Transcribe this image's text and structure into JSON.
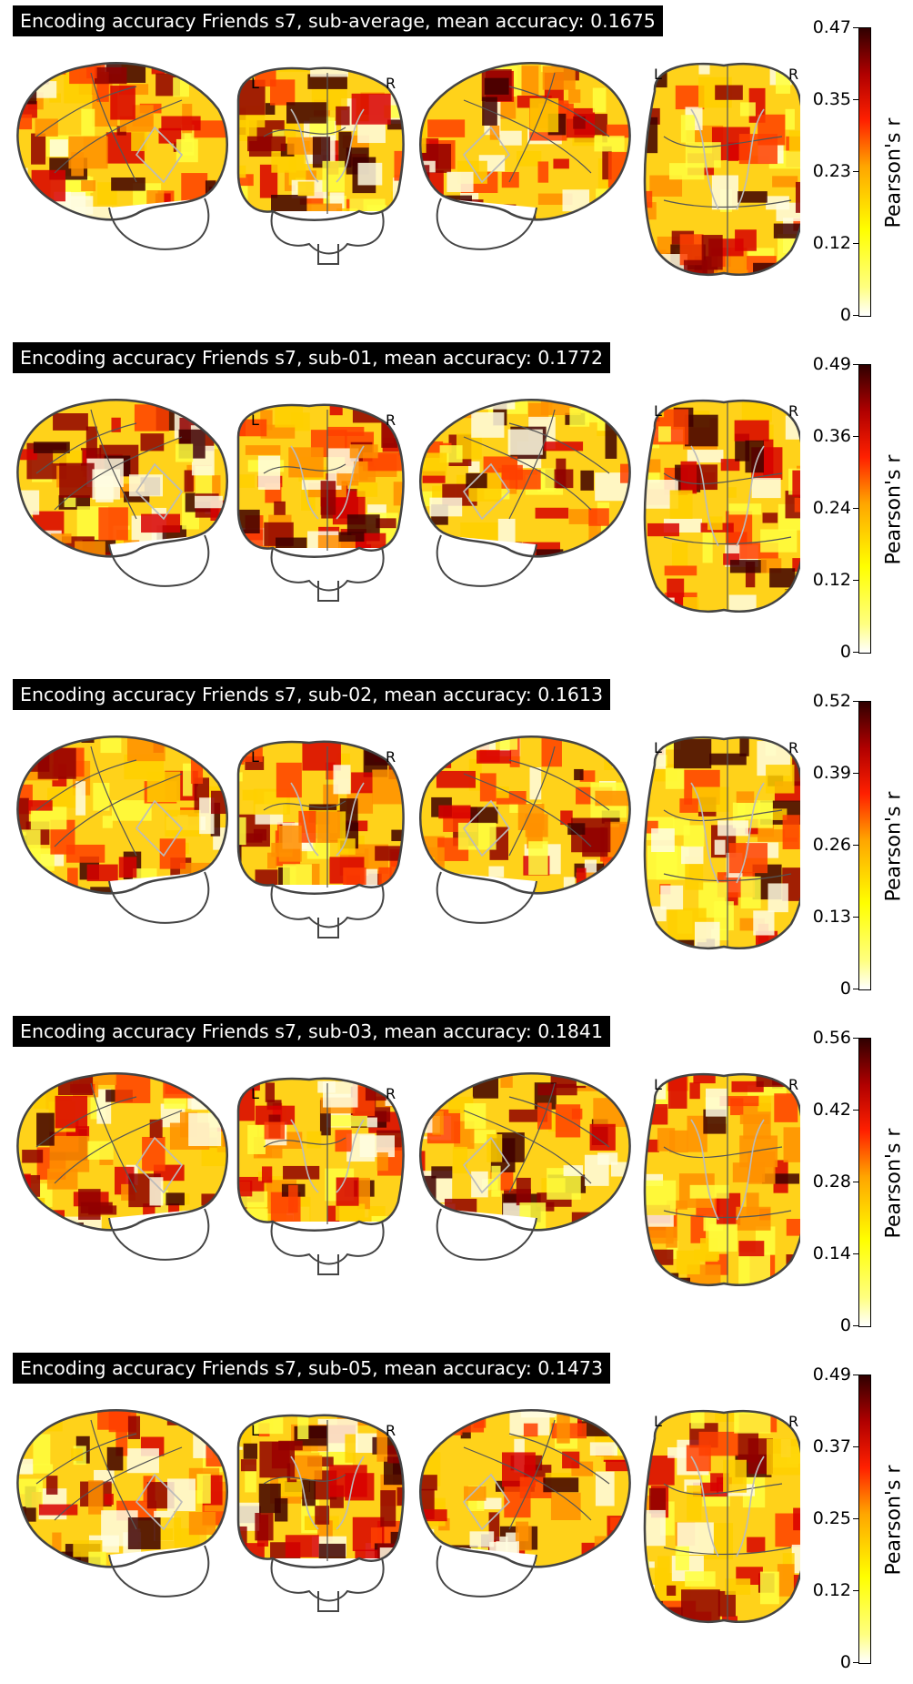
{
  "panels": [
    {
      "title": "Encoding accuracy Friends s7, sub-average, mean accuracy: 0.1675",
      "ticks": [
        "0.47",
        "0.35",
        "0.23",
        "0.12",
        "0"
      ]
    },
    {
      "title": "Encoding accuracy Friends s7, sub-01, mean accuracy: 0.1772",
      "ticks": [
        "0.49",
        "0.36",
        "0.24",
        "0.12",
        "0"
      ]
    },
    {
      "title": "Encoding accuracy Friends s7, sub-02, mean accuracy: 0.1613",
      "ticks": [
        "0.52",
        "0.39",
        "0.26",
        "0.13",
        "0"
      ]
    },
    {
      "title": "Encoding accuracy Friends s7, sub-03, mean accuracy: 0.1841",
      "ticks": [
        "0.56",
        "0.42",
        "0.28",
        "0.14",
        "0"
      ]
    },
    {
      "title": "Encoding accuracy Friends s7, sub-05, mean accuracy: 0.1473",
      "ticks": [
        "0.49",
        "0.37",
        "0.25",
        "0.12",
        "0"
      ]
    }
  ],
  "colorbar_label": "Pearson's r",
  "view_labels": {
    "left": "L",
    "right": "R"
  },
  "colors": {
    "cmap": [
      "#ffffff",
      "#ffff00",
      "#ffa500",
      "#ff2000",
      "#b00000",
      "#300000"
    ]
  }
}
